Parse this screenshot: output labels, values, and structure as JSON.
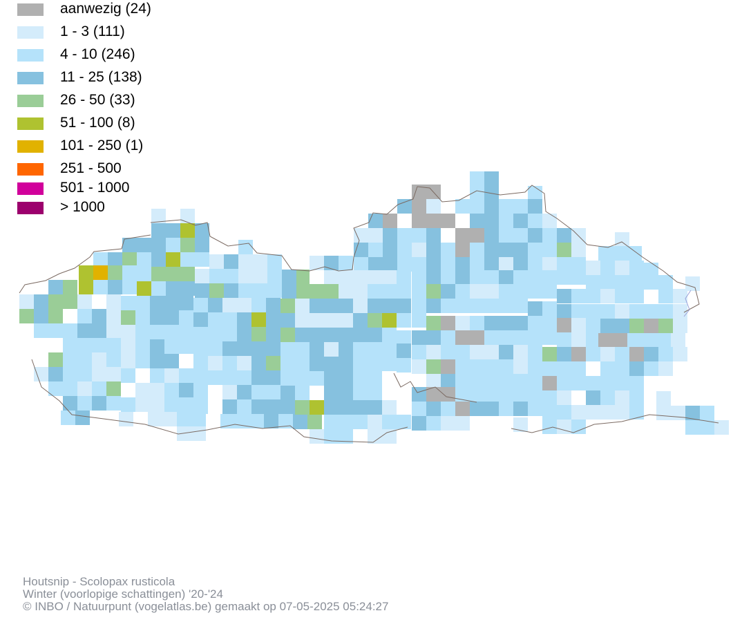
{
  "legend": {
    "items": [
      {
        "label": "aanwezig (24)",
        "color": "#b0b0b0"
      },
      {
        "label": "1 - 3 (111)",
        "color": "#d4ecfb"
      },
      {
        "label": "4 - 10 (246)",
        "color": "#b5e2fa"
      },
      {
        "label": "11 - 25 (138)",
        "color": "#86c1df"
      },
      {
        "label": "26 - 50 (33)",
        "color": "#9acd97"
      },
      {
        "label": "51 - 100 (8)",
        "color": "#afc230"
      },
      {
        "label": "101 - 250 (1)",
        "color": "#e1b200"
      },
      {
        "label": "251 - 500",
        "color": "#ff6600"
      },
      {
        "label": "501 - 1000",
        "color": "#d1009b"
      },
      {
        "label": "> 1000",
        "color": "#9c006d"
      }
    ]
  },
  "map": {
    "border_color": "#7b6a62",
    "water_color": "#9aa0d8"
  },
  "footer": {
    "species": "Houtsnip - Scolopax rusticola",
    "period": "Winter (voorlopige schattingen) '20-'24",
    "credit": "© INBO / Natuurpunt (vogelatlas.be) gemaakt op 07-05-2025 05:24:27"
  }
}
